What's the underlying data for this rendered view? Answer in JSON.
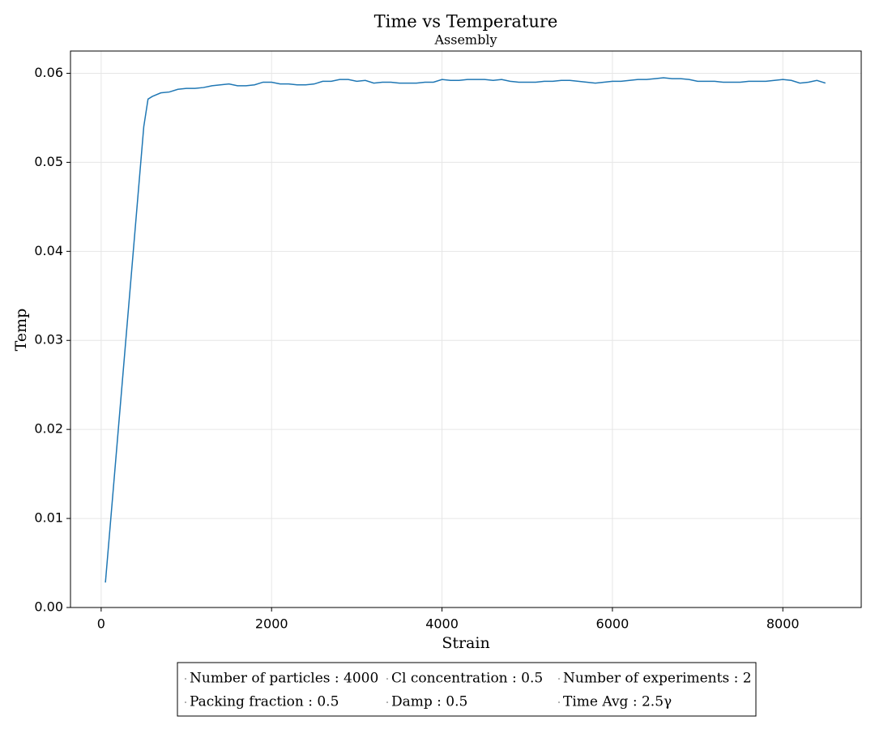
{
  "chart_data": {
    "type": "line",
    "title": "Time vs Temperature",
    "subtitle": "Assembly",
    "x_label": "Strain",
    "y_label": "Temp",
    "color": "#1f77b4",
    "grid": true,
    "x": [
      50,
      500,
      550,
      600,
      700,
      800,
      900,
      1000,
      1100,
      1200,
      1300,
      1400,
      1500,
      1600,
      1700,
      1800,
      1900,
      2000,
      2100,
      2200,
      2300,
      2400,
      2500,
      2600,
      2700,
      2800,
      2900,
      3000,
      3100,
      3200,
      3300,
      3400,
      3500,
      3600,
      3700,
      3800,
      3900,
      4000,
      4100,
      4200,
      4300,
      4400,
      4500,
      4600,
      4700,
      4800,
      4900,
      5000,
      5100,
      5200,
      5300,
      5400,
      5500,
      5600,
      5700,
      5800,
      5900,
      6000,
      6100,
      6200,
      6300,
      6400,
      6500,
      6600,
      6700,
      6800,
      6900,
      7000,
      7100,
      7200,
      7300,
      7400,
      7500,
      7600,
      7700,
      7800,
      7900,
      8000,
      8100,
      8200,
      8300,
      8400,
      8500
    ],
    "values": [
      0.0028,
      0.054,
      0.0571,
      0.0574,
      0.0578,
      0.0579,
      0.0582,
      0.0583,
      0.0583,
      0.0584,
      0.0586,
      0.0587,
      0.0588,
      0.0586,
      0.0586,
      0.0587,
      0.059,
      0.059,
      0.0588,
      0.0588,
      0.0587,
      0.0587,
      0.0588,
      0.0591,
      0.0591,
      0.0593,
      0.0593,
      0.0591,
      0.0592,
      0.0589,
      0.059,
      0.059,
      0.0589,
      0.0589,
      0.0589,
      0.059,
      0.059,
      0.0593,
      0.0592,
      0.0592,
      0.0593,
      0.0593,
      0.0593,
      0.0592,
      0.0593,
      0.0591,
      0.059,
      0.059,
      0.059,
      0.0591,
      0.0591,
      0.0592,
      0.0592,
      0.0591,
      0.059,
      0.0589,
      0.059,
      0.0591,
      0.0591,
      0.0592,
      0.0593,
      0.0593,
      0.0594,
      0.0595,
      0.0594,
      0.0594,
      0.0593,
      0.0591,
      0.0591,
      0.0591,
      0.059,
      0.059,
      0.059,
      0.0591,
      0.0591,
      0.0591,
      0.0592,
      0.0593,
      0.0592,
      0.0589,
      0.059,
      0.0592,
      0.0589
    ],
    "xlim": [
      -360,
      8920
    ],
    "ylim": [
      0,
      0.0625
    ],
    "xticks": [
      0,
      2000,
      4000,
      6000,
      8000
    ],
    "yticks": [
      {
        "value": 0,
        "label": "0.00"
      },
      {
        "value": 0.01,
        "label": "0.01"
      },
      {
        "value": 0.02,
        "label": "0.02"
      },
      {
        "value": 0.03,
        "label": "0.03"
      },
      {
        "value": 0.04,
        "label": "0.04"
      },
      {
        "value": 0.05,
        "label": "0.05"
      },
      {
        "value": 0.06,
        "label": "0.06"
      }
    ],
    "legend_items": [
      "Number of particles : 4000",
      "Cl concentration : 0.5",
      "Number of experiments : 2",
      "Packing fraction : 0.5",
      "Damp : 0.5",
      "Time Avg : 2.5γ"
    ]
  }
}
